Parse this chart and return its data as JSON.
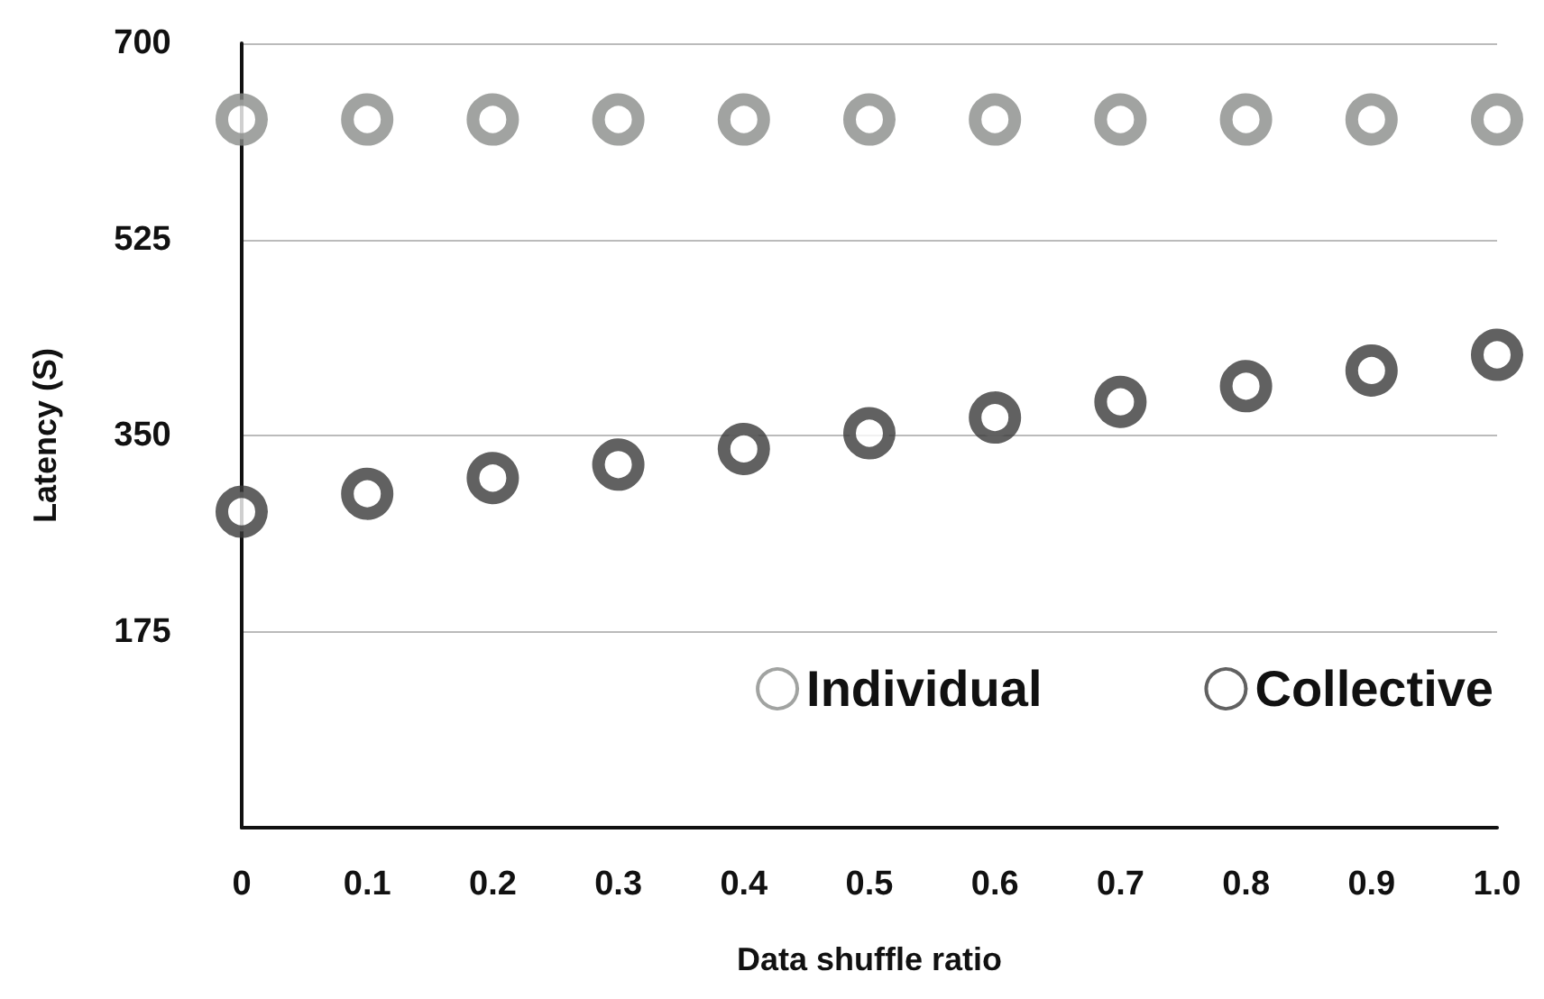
{
  "chart_data": {
    "type": "scatter",
    "xlabel": "Data shuffle ratio",
    "ylabel": "Latency (S)",
    "x": [
      0,
      0.1,
      0.2,
      0.3,
      0.4,
      0.5,
      0.6,
      0.7,
      0.8,
      0.9,
      1.0
    ],
    "series": [
      {
        "name": "Individual",
        "color": "#8a8c8a",
        "values": [
          632,
          632,
          632,
          632,
          632,
          632,
          632,
          632,
          632,
          632,
          632
        ]
      },
      {
        "name": "Collective",
        "color": "#3a3a3a",
        "values": [
          282,
          298,
          312,
          324,
          338,
          352,
          366,
          380,
          394,
          408,
          422
        ]
      }
    ],
    "xlim": [
      0,
      1
    ],
    "xticks": [
      0,
      0.1,
      0.2,
      0.3,
      0.4,
      0.5,
      0.6,
      0.7,
      0.8,
      0.9,
      {
        "value": 1,
        "label": "1.0"
      }
    ],
    "ylim": [
      0,
      700
    ],
    "yticks": [
      175,
      350,
      525,
      700
    ],
    "grid": "y",
    "legend": "bottom right",
    "marker": "circle"
  }
}
